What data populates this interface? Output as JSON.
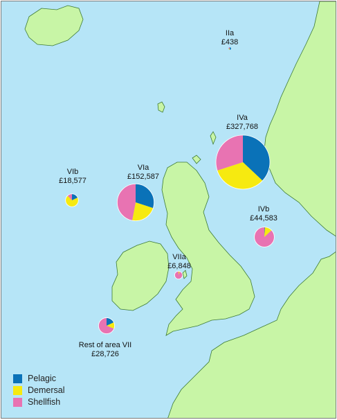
{
  "colors": {
    "sea": "#b6e5f7",
    "land": "#c8f5a6",
    "coast": "#3d7a34",
    "pelagic": "#0a72b8",
    "demersal": "#f6ea10",
    "shellfish": "#e873b2"
  },
  "areas": [
    {
      "id": "IIa",
      "name": "IIa",
      "value": "£438",
      "total": 438,
      "shares": {
        "pelagic": 0.5,
        "demersal": 0.2,
        "shellfish": 0.3
      }
    },
    {
      "id": "IVa",
      "name": "IVa",
      "value": "£327,768",
      "total": 327768,
      "shares": {
        "pelagic": 0.37,
        "demersal": 0.33,
        "shellfish": 0.3
      }
    },
    {
      "id": "VIb",
      "name": "VIb",
      "value": "£18,577",
      "total": 18577,
      "shares": {
        "pelagic": 0.18,
        "demersal": 0.7,
        "shellfish": 0.12
      }
    },
    {
      "id": "VIa",
      "name": "VIa",
      "value": "£152,587",
      "total": 152587,
      "shares": {
        "pelagic": 0.3,
        "demersal": 0.23,
        "shellfish": 0.47
      }
    },
    {
      "id": "IVb",
      "name": "IVb",
      "value": "£44,583",
      "total": 44583,
      "shares": {
        "pelagic": 0.01,
        "demersal": 0.12,
        "shellfish": 0.87
      }
    },
    {
      "id": "VIIa",
      "name": "VIIa",
      "value": "£6,848",
      "total": 6848,
      "shares": {
        "pelagic": 0.0,
        "demersal": 0.05,
        "shellfish": 0.95
      }
    },
    {
      "id": "VII",
      "name": "Rest of area VII",
      "value": "£28,726",
      "total": 28726,
      "shares": {
        "pelagic": 0.18,
        "demersal": 0.13,
        "shellfish": 0.69
      }
    }
  ],
  "legend": [
    {
      "key": "pelagic",
      "label": "Pelagic"
    },
    {
      "key": "demersal",
      "label": "Demersal"
    },
    {
      "key": "shellfish",
      "label": "Shellfish"
    }
  ]
}
